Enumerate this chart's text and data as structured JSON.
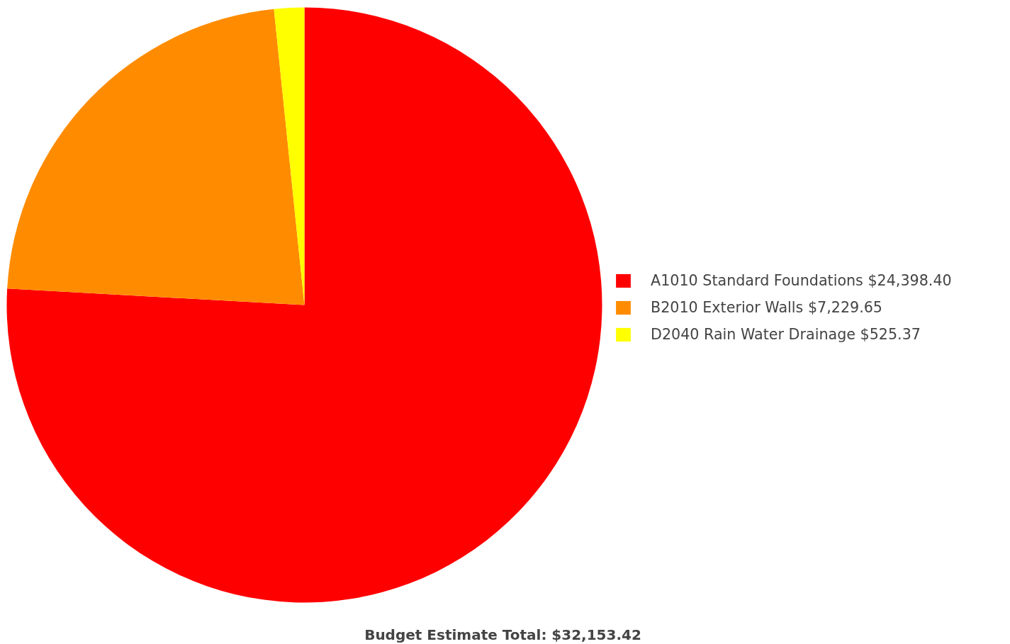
{
  "chart_data": {
    "type": "pie",
    "categories": [
      "A1010 Standard Foundations $24,398.40",
      "B2010 Exterior Walls $7,229.65",
      "D2040 Rain Water Drainage $525.37"
    ],
    "values": [
      24398.4,
      7229.65,
      525.37
    ],
    "colors": [
      "#ff0000",
      "#ff8c00",
      "#ffff00"
    ],
    "legend": "right",
    "annotations": [
      "Budget Estimate Total: $32,153.42"
    ]
  }
}
